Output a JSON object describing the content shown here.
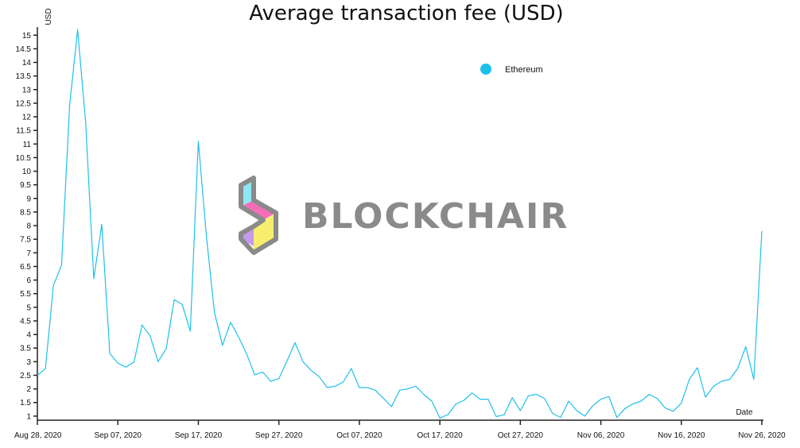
{
  "chart_data": {
    "type": "line",
    "title": "Average transaction fee (USD)",
    "ylabel": "USD",
    "xlabel": "Date",
    "ylim": [
      0.85,
      15.3
    ],
    "y_ticks": [
      1,
      1.5,
      2,
      2.5,
      3,
      3.5,
      4,
      4.5,
      5,
      5.5,
      6,
      6.5,
      7,
      7.5,
      8,
      8.5,
      9,
      9.5,
      10,
      10.5,
      11,
      11.5,
      12,
      12.5,
      13,
      13.5,
      14,
      14.5,
      15
    ],
    "x_ticks": [
      "Aug 28, 2020",
      "Sep 07, 2020",
      "Sep 17, 2020",
      "Sep 27, 2020",
      "Oct 07, 2020",
      "Oct 17, 2020",
      "Oct 27, 2020",
      "Nov 06, 2020",
      "Nov 16, 2020",
      "Nov 26, 2020"
    ],
    "legend_position": "top-right",
    "series": [
      {
        "name": "Ethereum",
        "color": "#1ec0ea",
        "x": [
          "2020-08-28",
          "2020-08-29",
          "2020-08-30",
          "2020-08-31",
          "2020-09-01",
          "2020-09-02",
          "2020-09-03",
          "2020-09-04",
          "2020-09-05",
          "2020-09-06",
          "2020-09-07",
          "2020-09-08",
          "2020-09-09",
          "2020-09-10",
          "2020-09-11",
          "2020-09-12",
          "2020-09-13",
          "2020-09-14",
          "2020-09-15",
          "2020-09-16",
          "2020-09-17",
          "2020-09-18",
          "2020-09-19",
          "2020-09-20",
          "2020-09-21",
          "2020-09-22",
          "2020-09-23",
          "2020-09-24",
          "2020-09-25",
          "2020-09-26",
          "2020-09-27",
          "2020-09-28",
          "2020-09-29",
          "2020-09-30",
          "2020-10-01",
          "2020-10-02",
          "2020-10-03",
          "2020-10-04",
          "2020-10-05",
          "2020-10-06",
          "2020-10-07",
          "2020-10-08",
          "2020-10-09",
          "2020-10-10",
          "2020-10-11",
          "2020-10-12",
          "2020-10-13",
          "2020-10-14",
          "2020-10-15",
          "2020-10-16",
          "2020-10-17",
          "2020-10-18",
          "2020-10-19",
          "2020-10-20",
          "2020-10-21",
          "2020-10-22",
          "2020-10-23",
          "2020-10-24",
          "2020-10-25",
          "2020-10-26",
          "2020-10-27",
          "2020-10-28",
          "2020-10-29",
          "2020-10-30",
          "2020-10-31",
          "2020-11-01",
          "2020-11-02",
          "2020-11-03",
          "2020-11-04",
          "2020-11-05",
          "2020-11-06",
          "2020-11-07",
          "2020-11-08",
          "2020-11-09",
          "2020-11-10",
          "2020-11-11",
          "2020-11-12",
          "2020-11-13",
          "2020-11-14",
          "2020-11-15",
          "2020-11-16",
          "2020-11-17",
          "2020-11-18",
          "2020-11-19",
          "2020-11-20",
          "2020-11-21",
          "2020-11-22",
          "2020-11-23",
          "2020-11-24",
          "2020-11-25",
          "2020-11-26"
        ],
        "y": [
          2.5,
          2.75,
          5.8,
          6.55,
          12.4,
          15.2,
          11.8,
          6.05,
          8.05,
          3.3,
          2.95,
          2.8,
          2.98,
          4.35,
          3.95,
          3.0,
          3.48,
          5.28,
          5.1,
          4.12,
          11.1,
          7.6,
          4.8,
          3.6,
          4.45,
          3.9,
          3.28,
          2.52,
          2.62,
          2.28,
          2.38,
          3.02,
          3.7,
          3.0,
          2.68,
          2.45,
          2.05,
          2.1,
          2.25,
          2.75,
          2.05,
          2.05,
          1.95,
          1.65,
          1.35,
          1.95,
          2.0,
          2.1,
          1.8,
          1.55,
          0.93,
          1.05,
          1.45,
          1.58,
          1.85,
          1.62,
          1.62,
          0.98,
          1.05,
          1.68,
          1.2,
          1.75,
          1.8,
          1.65,
          1.1,
          0.95,
          1.55,
          1.2,
          1.0,
          1.38,
          1.62,
          1.72,
          0.95,
          1.28,
          1.45,
          1.55,
          1.8,
          1.65,
          1.3,
          1.18,
          1.48,
          2.35,
          2.78,
          1.7,
          2.1,
          2.28,
          2.35,
          2.75,
          3.55,
          2.35,
          7.8
        ]
      }
    ]
  },
  "watermark": {
    "text": "BLOCKCHAIR",
    "logo_colors": [
      "#8fe7f5",
      "#f46db8",
      "#c49aee",
      "#f7ee6e"
    ],
    "text_color": "#8a8a8a"
  }
}
